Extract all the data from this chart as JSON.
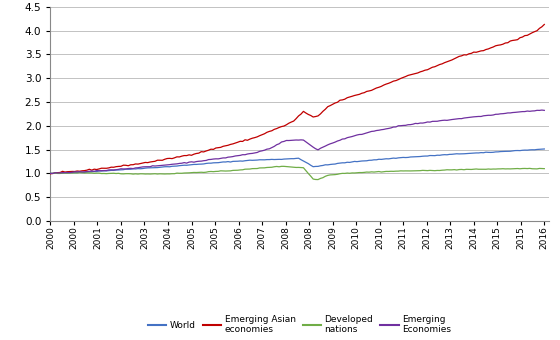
{
  "ylim": [
    0.0,
    4.5
  ],
  "yticks": [
    0.0,
    0.5,
    1.0,
    1.5,
    2.0,
    2.5,
    3.0,
    3.5,
    4.0,
    4.5
  ],
  "colors": {
    "world": "#4472C4",
    "emerging_asian": "#C00000",
    "developed": "#70AD47",
    "emerging": "#7030A0"
  },
  "legend": [
    "World",
    "Emerging Asian\neconomies",
    "Developed\nnations",
    "Emerging\nEconomies"
  ],
  "x_tick_labels": [
    "2000",
    "2000",
    "2001",
    "2002",
    "2003",
    "2004",
    "2005",
    "2005",
    "2006",
    "2007",
    "2008",
    "2008",
    "2009",
    "2010",
    "2010",
    "2011",
    "2012",
    "2013",
    "2014",
    "2015",
    "2015",
    "2016"
  ],
  "n_points": 204,
  "world_key_points": [
    [
      0,
      1.0
    ],
    [
      12,
      1.02
    ],
    [
      24,
      1.06
    ],
    [
      36,
      1.1
    ],
    [
      48,
      1.14
    ],
    [
      60,
      1.19
    ],
    [
      72,
      1.24
    ],
    [
      84,
      1.28
    ],
    [
      96,
      1.3
    ],
    [
      102,
      1.32
    ],
    [
      108,
      1.14
    ],
    [
      114,
      1.18
    ],
    [
      120,
      1.22
    ],
    [
      132,
      1.28
    ],
    [
      144,
      1.33
    ],
    [
      156,
      1.37
    ],
    [
      168,
      1.41
    ],
    [
      180,
      1.44
    ],
    [
      192,
      1.48
    ],
    [
      203,
      1.51
    ]
  ],
  "emerging_asian_key_points": [
    [
      0,
      1.0
    ],
    [
      12,
      1.05
    ],
    [
      24,
      1.12
    ],
    [
      36,
      1.2
    ],
    [
      48,
      1.3
    ],
    [
      60,
      1.42
    ],
    [
      72,
      1.58
    ],
    [
      84,
      1.75
    ],
    [
      90,
      1.88
    ],
    [
      96,
      2.0
    ],
    [
      100,
      2.1
    ],
    [
      104,
      2.3
    ],
    [
      108,
      2.18
    ],
    [
      110,
      2.2
    ],
    [
      114,
      2.4
    ],
    [
      120,
      2.55
    ],
    [
      132,
      2.75
    ],
    [
      144,
      3.0
    ],
    [
      156,
      3.2
    ],
    [
      168,
      3.45
    ],
    [
      180,
      3.62
    ],
    [
      192,
      3.82
    ],
    [
      200,
      4.0
    ],
    [
      203,
      4.13
    ]
  ],
  "developed_key_points": [
    [
      0,
      1.0
    ],
    [
      12,
      1.01
    ],
    [
      24,
      1.0
    ],
    [
      36,
      0.99
    ],
    [
      48,
      0.99
    ],
    [
      60,
      1.02
    ],
    [
      72,
      1.05
    ],
    [
      84,
      1.1
    ],
    [
      90,
      1.13
    ],
    [
      96,
      1.15
    ],
    [
      100,
      1.13
    ],
    [
      104,
      1.12
    ],
    [
      108,
      0.88
    ],
    [
      110,
      0.87
    ],
    [
      114,
      0.96
    ],
    [
      120,
      1.0
    ],
    [
      132,
      1.03
    ],
    [
      144,
      1.05
    ],
    [
      156,
      1.06
    ],
    [
      168,
      1.08
    ],
    [
      180,
      1.09
    ],
    [
      192,
      1.1
    ],
    [
      203,
      1.1
    ]
  ],
  "emerging_key_points": [
    [
      0,
      1.0
    ],
    [
      12,
      1.03
    ],
    [
      24,
      1.07
    ],
    [
      36,
      1.12
    ],
    [
      48,
      1.18
    ],
    [
      60,
      1.25
    ],
    [
      72,
      1.33
    ],
    [
      84,
      1.43
    ],
    [
      90,
      1.52
    ],
    [
      96,
      1.68
    ],
    [
      100,
      1.7
    ],
    [
      104,
      1.7
    ],
    [
      108,
      1.55
    ],
    [
      110,
      1.5
    ],
    [
      114,
      1.6
    ],
    [
      120,
      1.72
    ],
    [
      132,
      1.88
    ],
    [
      144,
      2.0
    ],
    [
      156,
      2.08
    ],
    [
      168,
      2.15
    ],
    [
      180,
      2.22
    ],
    [
      192,
      2.29
    ],
    [
      203,
      2.33
    ]
  ]
}
